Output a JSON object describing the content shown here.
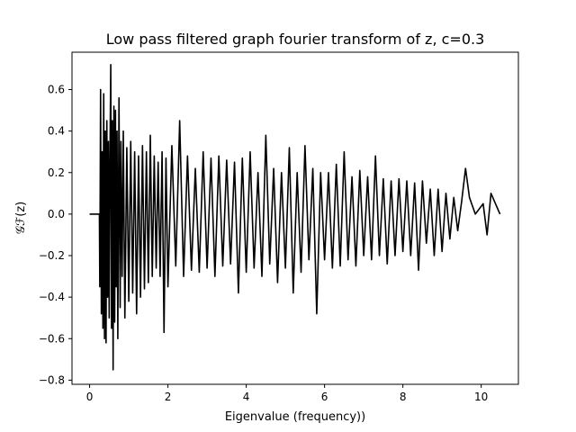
{
  "chart_data": {
    "type": "line",
    "title": "Low pass filtered graph fourier transform of z, c=0.3",
    "xlabel": "Eigenvalue (frequency))",
    "ylabel": "𝒢ℱ(z)",
    "xlim": [
      -0.45,
      10.95
    ],
    "ylim": [
      -0.82,
      0.78
    ],
    "xticks": [
      0,
      2,
      4,
      6,
      8,
      10
    ],
    "xtick_labels": [
      "0",
      "2",
      "4",
      "6",
      "8",
      "10"
    ],
    "yticks": [
      -0.8,
      -0.6,
      -0.4,
      -0.2,
      0.0,
      0.2,
      0.4,
      0.6
    ],
    "ytick_labels": [
      "−0.8",
      "−0.6",
      "−0.4",
      "−0.2",
      "0.0",
      "0.2",
      "0.4",
      "0.6"
    ],
    "grid": false,
    "line_color": "#000000",
    "series": [
      {
        "x": [
          0.0,
          0.25,
          0.26,
          0.28,
          0.3,
          0.32,
          0.34,
          0.36,
          0.38,
          0.4,
          0.42,
          0.44,
          0.46,
          0.48,
          0.5,
          0.52,
          0.54,
          0.56,
          0.58,
          0.6,
          0.62,
          0.64,
          0.66,
          0.68,
          0.7,
          0.72,
          0.75,
          0.78,
          0.8,
          0.83,
          0.86,
          0.9,
          0.95,
          1.0,
          1.05,
          1.1,
          1.15,
          1.2,
          1.25,
          1.3,
          1.35,
          1.4,
          1.45,
          1.5,
          1.55,
          1.6,
          1.65,
          1.7,
          1.75,
          1.8,
          1.85,
          1.9,
          1.95,
          2.0,
          2.1,
          2.2,
          2.3,
          2.4,
          2.5,
          2.6,
          2.7,
          2.8,
          2.9,
          3.0,
          3.1,
          3.2,
          3.3,
          3.4,
          3.5,
          3.6,
          3.7,
          3.8,
          3.9,
          4.0,
          4.1,
          4.2,
          4.3,
          4.4,
          4.5,
          4.6,
          4.7,
          4.8,
          4.9,
          5.0,
          5.1,
          5.2,
          5.3,
          5.4,
          5.5,
          5.6,
          5.7,
          5.8,
          5.9,
          6.0,
          6.1,
          6.2,
          6.3,
          6.4,
          6.5,
          6.6,
          6.7,
          6.8,
          6.9,
          7.0,
          7.1,
          7.2,
          7.3,
          7.4,
          7.5,
          7.6,
          7.7,
          7.8,
          7.9,
          8.0,
          8.1,
          8.2,
          8.3,
          8.4,
          8.5,
          8.6,
          8.7,
          8.8,
          8.9,
          9.0,
          9.1,
          9.2,
          9.3,
          9.4,
          9.5,
          9.6,
          9.7,
          9.85,
          10.05,
          10.15,
          10.25,
          10.48
        ],
        "values": [
          0.0,
          0.0,
          -0.35,
          0.6,
          -0.48,
          0.3,
          -0.55,
          0.58,
          -0.6,
          0.4,
          -0.62,
          0.45,
          -0.4,
          0.35,
          -0.5,
          0.28,
          0.72,
          -0.55,
          0.45,
          -0.75,
          0.52,
          -0.52,
          0.5,
          -0.35,
          0.4,
          -0.6,
          0.56,
          -0.45,
          0.35,
          -0.3,
          0.4,
          -0.5,
          0.32,
          -0.42,
          0.35,
          -0.38,
          0.3,
          -0.48,
          0.28,
          -0.4,
          0.33,
          -0.36,
          0.3,
          -0.33,
          0.38,
          -0.3,
          0.28,
          -0.26,
          0.25,
          -0.3,
          0.3,
          -0.57,
          0.27,
          -0.35,
          0.33,
          -0.25,
          0.45,
          -0.3,
          0.28,
          -0.27,
          0.22,
          -0.28,
          0.3,
          -0.26,
          0.27,
          -0.3,
          0.28,
          -0.25,
          0.26,
          -0.24,
          0.25,
          -0.38,
          0.27,
          -0.28,
          0.3,
          -0.26,
          0.2,
          -0.3,
          0.38,
          -0.24,
          0.22,
          -0.33,
          0.2,
          -0.26,
          0.32,
          -0.38,
          0.2,
          -0.28,
          0.33,
          -0.22,
          0.22,
          -0.48,
          0.2,
          -0.22,
          0.2,
          -0.26,
          0.24,
          -0.25,
          0.3,
          -0.22,
          0.18,
          -0.25,
          0.21,
          -0.2,
          0.18,
          -0.22,
          0.28,
          -0.2,
          0.17,
          -0.24,
          0.16,
          -0.2,
          0.17,
          -0.18,
          0.16,
          -0.2,
          0.15,
          -0.27,
          0.16,
          -0.14,
          0.12,
          -0.2,
          0.12,
          -0.18,
          0.1,
          -0.12,
          0.08,
          -0.08,
          0.06,
          0.22,
          0.08,
          0.0,
          0.05,
          -0.1,
          0.1,
          0.0
        ]
      }
    ]
  }
}
